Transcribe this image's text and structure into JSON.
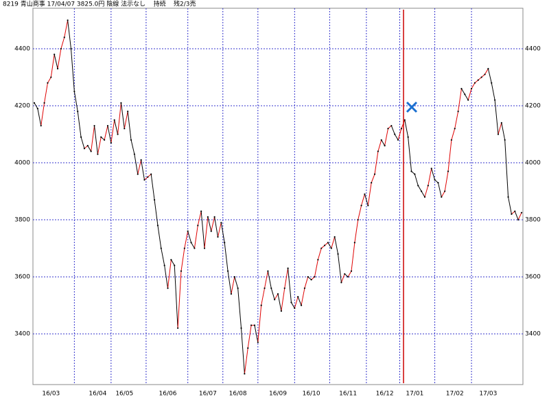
{
  "chart_data": {
    "type": "line",
    "title": "8219 青山商事 17/04/07 3825.0円 陰線 法示なし    持続    残2/3売",
    "categories": [
      null,
      null,
      null,
      null,
      null,
      "16/03",
      null,
      null,
      null,
      null,
      null,
      null,
      null,
      null,
      null,
      null,
      null,
      null,
      null,
      "16/04",
      null,
      null,
      null,
      null,
      null,
      null,
      null,
      "16/05",
      null,
      null,
      null,
      null,
      null,
      null,
      null,
      null,
      null,
      null,
      null,
      null,
      "16/06",
      null,
      null,
      null,
      null,
      null,
      null,
      null,
      null,
      null,
      null,
      null,
      "16/07",
      null,
      null,
      null,
      null,
      null,
      null,
      null,
      null,
      "16/08",
      null,
      null,
      null,
      null,
      null,
      null,
      null,
      null,
      null,
      null,
      null,
      "16/09",
      null,
      null,
      null,
      null,
      null,
      null,
      null,
      null,
      null,
      "16/10",
      null,
      null,
      null,
      null,
      null,
      null,
      null,
      null,
      null,
      null,
      "16/11",
      null,
      null,
      null,
      null,
      null,
      null,
      null,
      null,
      null,
      null,
      "16/12",
      null,
      null,
      null,
      null,
      null,
      null,
      null,
      null,
      "17/01",
      null,
      null,
      null,
      null,
      null,
      null,
      null,
      null,
      null,
      null,
      null,
      "17/02",
      null,
      null,
      null,
      null,
      null,
      null,
      null,
      null,
      null,
      "17/03",
      null,
      null,
      null,
      null,
      null,
      null,
      null,
      null,
      null,
      null
    ],
    "values": [
      4210,
      4190,
      4130,
      4210,
      4280,
      4300,
      4380,
      4330,
      4400,
      4440,
      4500,
      4400,
      4250,
      4180,
      4090,
      4050,
      4060,
      4040,
      4130,
      4030,
      4090,
      4080,
      4130,
      4070,
      4150,
      4100,
      4210,
      4120,
      4180,
      4080,
      4030,
      3960,
      4010,
      3940,
      3950,
      3960,
      3870,
      3780,
      3700,
      3640,
      3560,
      3660,
      3640,
      3420,
      3620,
      3700,
      3760,
      3720,
      3700,
      3780,
      3830,
      3700,
      3810,
      3760,
      3810,
      3740,
      3790,
      3720,
      3620,
      3540,
      3600,
      3560,
      3420,
      3260,
      3350,
      3430,
      3430,
      3370,
      3500,
      3560,
      3620,
      3560,
      3520,
      3540,
      3480,
      3560,
      3630,
      3510,
      3490,
      3530,
      3500,
      3560,
      3600,
      3590,
      3600,
      3660,
      3700,
      3710,
      3720,
      3700,
      3740,
      3680,
      3580,
      3610,
      3600,
      3620,
      3720,
      3800,
      3850,
      3890,
      3850,
      3930,
      3960,
      4040,
      4080,
      4060,
      4120,
      4130,
      4100,
      4080,
      4120,
      4150,
      4090,
      3970,
      3960,
      3920,
      3900,
      3880,
      3920,
      3980,
      3940,
      3930,
      3880,
      3900,
      3970,
      4080,
      4120,
      4180,
      4260,
      4240,
      4220,
      4260,
      4280,
      4290,
      4300,
      4310,
      4330,
      4280,
      4220,
      4100,
      4140,
      4080,
      3880,
      3820,
      3830,
      3800,
      3825
    ],
    "up_color": "#e00000",
    "down_color": "#000000",
    "ylim": [
      3222,
      4542
    ],
    "yticks": [
      3400,
      3600,
      3800,
      4000,
      4200,
      4400
    ],
    "grid": true
  }
}
